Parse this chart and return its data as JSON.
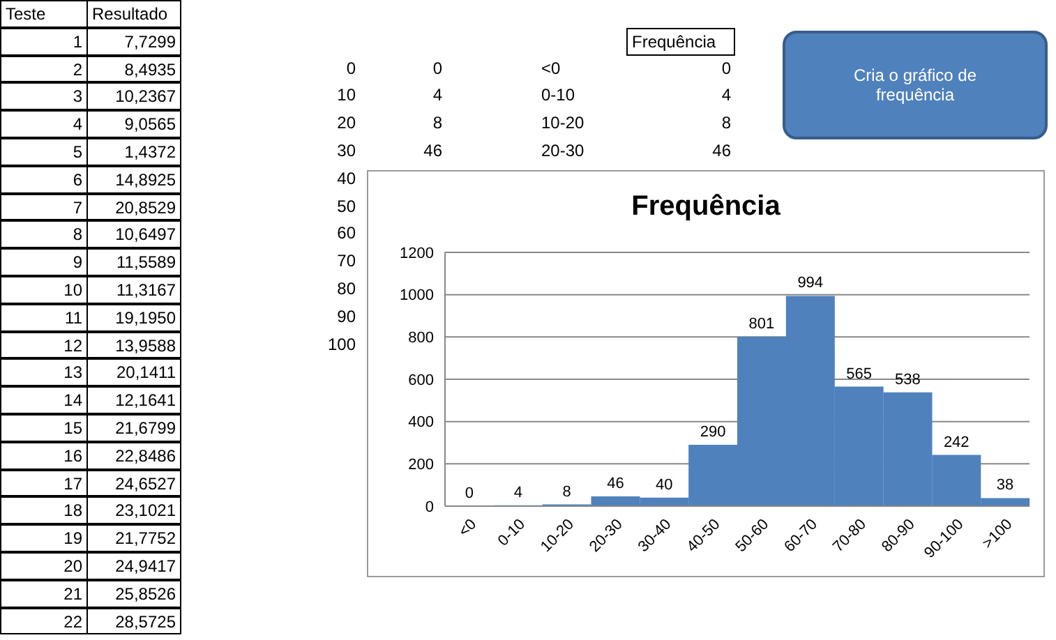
{
  "chart_data": {
    "type": "bar",
    "title": "Frequência",
    "categories": [
      "<0",
      "0-10",
      "10-20",
      "20-30",
      "30-40",
      "40-50",
      "50-60",
      "60-70",
      "70-80",
      "80-90",
      "90-100",
      ">100"
    ],
    "values": [
      0,
      4,
      8,
      46,
      40,
      290,
      801,
      994,
      565,
      538,
      242,
      38
    ],
    "color": "#4f81bd",
    "ylim": [
      0,
      1200
    ],
    "yticks": [
      0,
      200,
      400,
      600,
      800,
      1000,
      1200
    ],
    "grid": "y",
    "data_labels": true,
    "legend": false,
    "annotations": [
      "Teste",
      "Resultado",
      "1",
      "7,7299",
      "2",
      "8,4935",
      "3",
      "10,2367",
      "4",
      "9,0565",
      "5",
      "1,4372",
      "6",
      "14,8925",
      "7",
      "20,8529",
      "8",
      "10,6497",
      "9",
      "11,5589",
      "10",
      "11,3167",
      "11",
      "19,1950",
      "12",
      "13,9588",
      "13",
      "20,1411",
      "14",
      "12,1641",
      "15",
      "21,6799",
      "16",
      "22,8486",
      "17",
      "24,6527",
      "18",
      "23,1021",
      "19",
      "21,7752",
      "20",
      "24,9417",
      "21",
      "25,8526",
      "22",
      "28,5725",
      "0",
      "10",
      "20",
      "30",
      "40",
      "50",
      "60",
      "70",
      "80",
      "90",
      "100",
      "0",
      "4",
      "8",
      "46",
      "<0",
      "0-10",
      "10-20",
      "20-30",
      "Frequência",
      "0",
      "4",
      "8",
      "46",
      "Cria o gráfico de frequência"
    ]
  }
}
